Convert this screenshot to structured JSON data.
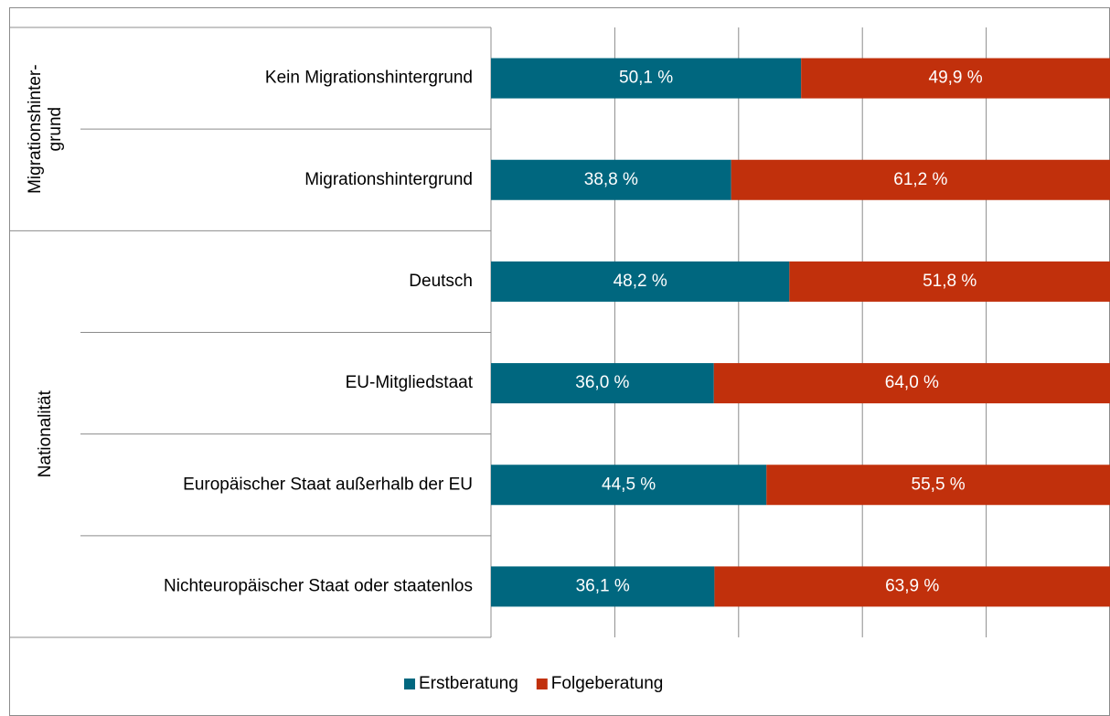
{
  "chart_data": {
    "type": "stacked-barh",
    "categories": [
      "Kein Migrationshintergrund",
      "Migrationshintergrund",
      "Deutsch",
      "EU-Mitgliedstaat",
      "Europäischer Staat außerhalb der EU",
      "Nichteuropäischer Staat oder staatenlos"
    ],
    "groups": [
      {
        "lines": [
          "Migrationshinter-",
          "grund"
        ],
        "categories": [
          0,
          1
        ]
      },
      {
        "lines": [
          "Nationalität"
        ],
        "categories": [
          2,
          3,
          4,
          5
        ]
      }
    ],
    "series": [
      {
        "name": "Erstberatung",
        "color": "#00677f",
        "values": [
          50.1,
          38.8,
          48.2,
          36.0,
          44.5,
          36.1
        ],
        "value_labels": [
          "50,1 %",
          "38,8 %",
          "48,2 %",
          "36,0 %",
          "44,5 %",
          "36,1 %"
        ]
      },
      {
        "name": "Folgeberatung",
        "color": "#c1300c",
        "values": [
          49.9,
          61.2,
          51.8,
          64.0,
          55.5,
          63.9
        ],
        "value_labels": [
          "49,9 %",
          "61,2 %",
          "51,8 %",
          "64,0 %",
          "55,5 %",
          "63,9 %"
        ]
      }
    ],
    "xlim": [
      0,
      100
    ],
    "xticks": [
      0,
      20,
      40,
      60,
      80,
      100
    ],
    "grid": true,
    "legend": "bottom"
  }
}
